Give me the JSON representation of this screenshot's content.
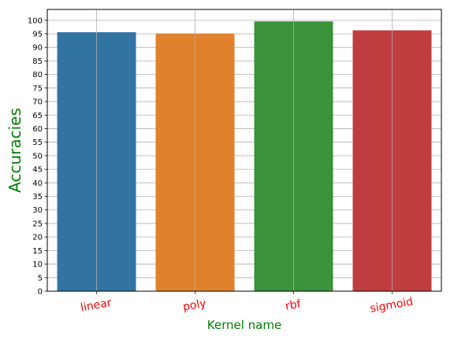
{
  "chart_data": {
    "type": "bar",
    "categories": [
      "linear",
      "poly",
      "rbf",
      "sigmoid"
    ],
    "values": [
      95.6,
      95.1,
      99.6,
      96.3
    ],
    "colors": [
      "#3274a1",
      "#e1812c",
      "#3a923a",
      "#c03d3e"
    ],
    "title": "",
    "xlabel": "Kernel name",
    "ylabel": "Accuracies",
    "xlabel_color": "#008000",
    "ylabel_color": "#008000",
    "xtick_color": "#ff0000",
    "ylim": [
      0,
      104
    ],
    "yticks": [
      0,
      5,
      10,
      15,
      20,
      25,
      30,
      35,
      40,
      45,
      50,
      55,
      60,
      65,
      70,
      75,
      80,
      85,
      90,
      95,
      100
    ],
    "grid": true
  }
}
